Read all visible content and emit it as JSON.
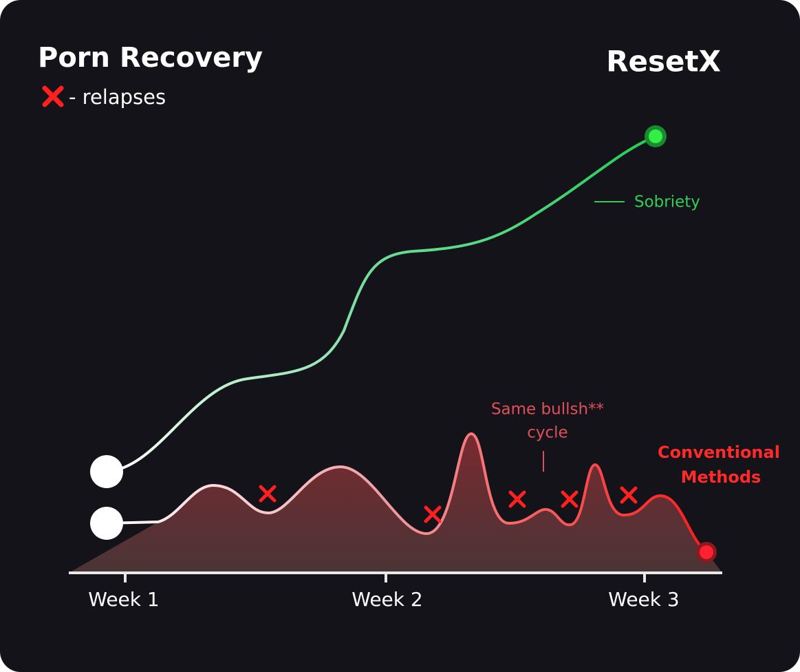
{
  "header": {
    "title": "Porn Recovery",
    "legend": "- relapses",
    "brand": "ResetX"
  },
  "labels": {
    "sobriety": "Sobriety",
    "annotation": [
      "Same bullsh**",
      "cycle"
    ],
    "conventional": [
      "Conventional",
      "Methods"
    ]
  },
  "x_axis": [
    "Week 1",
    "Week 2",
    "Week 3"
  ]
}
